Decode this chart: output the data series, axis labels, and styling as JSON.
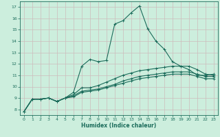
{
  "xlabel": "Humidex (Indice chaleur)",
  "bg_color": "#cceedd",
  "grid_color": "#ccbbbb",
  "line_color": "#1a6b5a",
  "xlim": [
    -0.5,
    23.5
  ],
  "ylim": [
    7.5,
    17.5
  ],
  "xticks": [
    0,
    1,
    2,
    3,
    4,
    5,
    6,
    7,
    8,
    9,
    10,
    11,
    12,
    13,
    14,
    15,
    16,
    17,
    18,
    19,
    20,
    21,
    22,
    23
  ],
  "yticks": [
    8,
    9,
    10,
    11,
    12,
    13,
    14,
    15,
    16,
    17
  ],
  "lines": [
    {
      "x": [
        0,
        1,
        2,
        3,
        4,
        5,
        6,
        7,
        8,
        9,
        10,
        11,
        12,
        13,
        14,
        15,
        16,
        17,
        18,
        19,
        20,
        21,
        22,
        23
      ],
      "y": [
        7.8,
        8.9,
        8.9,
        9.0,
        8.7,
        9.0,
        9.5,
        11.8,
        12.4,
        12.2,
        12.3,
        15.5,
        15.8,
        16.5,
        17.1,
        15.1,
        14.0,
        13.3,
        12.2,
        11.8,
        11.5,
        11.0,
        11.0,
        11.1
      ]
    },
    {
      "x": [
        0,
        1,
        2,
        3,
        4,
        5,
        6,
        7,
        8,
        9,
        10,
        11,
        12,
        13,
        14,
        15,
        16,
        17,
        18,
        19,
        20,
        21,
        22,
        23
      ],
      "y": [
        7.8,
        8.9,
        8.9,
        9.0,
        8.7,
        9.0,
        9.3,
        9.9,
        9.9,
        10.1,
        10.4,
        10.7,
        11.0,
        11.2,
        11.4,
        11.5,
        11.6,
        11.7,
        11.8,
        11.8,
        11.8,
        11.5,
        11.1,
        11.0
      ]
    },
    {
      "x": [
        0,
        1,
        2,
        3,
        4,
        5,
        6,
        7,
        8,
        9,
        10,
        11,
        12,
        13,
        14,
        15,
        16,
        17,
        18,
        19,
        20,
        21,
        22,
        23
      ],
      "y": [
        7.8,
        8.9,
        8.9,
        9.0,
        8.7,
        9.0,
        9.2,
        9.6,
        9.7,
        9.8,
        10.0,
        10.2,
        10.5,
        10.7,
        10.9,
        11.0,
        11.1,
        11.2,
        11.3,
        11.3,
        11.3,
        11.1,
        10.9,
        10.9
      ]
    },
    {
      "x": [
        0,
        1,
        2,
        3,
        4,
        5,
        6,
        7,
        8,
        9,
        10,
        11,
        12,
        13,
        14,
        15,
        16,
        17,
        18,
        19,
        20,
        21,
        22,
        23
      ],
      "y": [
        7.8,
        8.9,
        8.9,
        9.0,
        8.7,
        9.0,
        9.1,
        9.5,
        9.6,
        9.7,
        9.9,
        10.1,
        10.3,
        10.5,
        10.7,
        10.8,
        10.9,
        11.0,
        11.1,
        11.1,
        11.1,
        10.9,
        10.7,
        10.7
      ]
    }
  ]
}
